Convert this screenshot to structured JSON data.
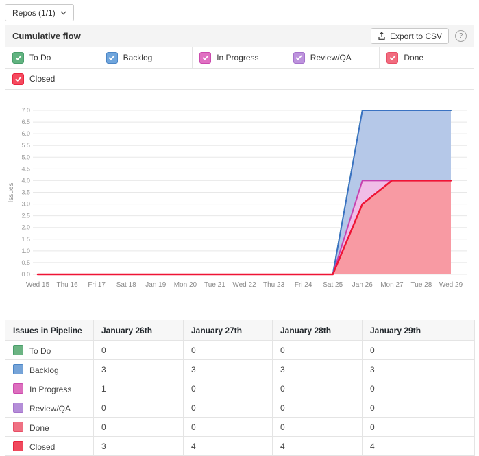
{
  "repos_button": {
    "label": "Repos (1/1)"
  },
  "panel": {
    "title": "Cumulative flow",
    "export_button": "Export to CSV",
    "help_icon": "?"
  },
  "legend": {
    "items": [
      {
        "label": "To Do",
        "color": "#61b380",
        "border": "#4a9e6c",
        "checked": true
      },
      {
        "label": "Backlog",
        "color": "#6fa5dc",
        "border": "#4c86c6",
        "checked": true
      },
      {
        "label": "In Progress",
        "color": "#e070c2",
        "border": "#cb4aad",
        "checked": true
      },
      {
        "label": "Review/QA",
        "color": "#bd93dd",
        "border": "#a673cc",
        "checked": true
      },
      {
        "label": "Done",
        "color": "#f16c7f",
        "border": "#e84f66",
        "checked": true
      },
      {
        "label": "Closed",
        "color": "#f54a5e",
        "border": "#e92540",
        "checked": true
      }
    ]
  },
  "chart_data": {
    "type": "area",
    "stacked": true,
    "title": "Cumulative flow",
    "xlabel": "",
    "ylabel": "Issues",
    "ylim": [
      0,
      7
    ],
    "grid": "horizontal",
    "legend_position": "top",
    "y_ticks": [
      "0.0",
      "0.5",
      "1.0",
      "1.5",
      "2.0",
      "2.5",
      "3.0",
      "3.5",
      "4.0",
      "4.5",
      "5.0",
      "5.5",
      "6.0",
      "6.5",
      "7.0"
    ],
    "x_ticks": [
      "Wed 15",
      "Thu 16",
      "Fri 17",
      "Sat 18",
      "Jan 19",
      "Mon 20",
      "Tue 21",
      "Wed 22",
      "Thu 23",
      "Fri 24",
      "Sat 25",
      "Jan 26",
      "Mon 27",
      "Tue 28",
      "Wed 29"
    ],
    "series": [
      {
        "name": "Closed",
        "values": [
          0,
          0,
          0,
          0,
          0,
          0,
          0,
          0,
          0,
          0,
          0,
          3,
          4,
          4,
          4
        ],
        "line": "#ef1435",
        "fill": "#f89aa3",
        "width": 2.5
      },
      {
        "name": "Done",
        "values": [
          0,
          0,
          0,
          0,
          0,
          0,
          0,
          0,
          0,
          0,
          0,
          0,
          0,
          0,
          0
        ],
        "line": "#e8506a",
        "fill": "#f7a6b0",
        "width": 2
      },
      {
        "name": "Review/QA",
        "values": [
          0,
          0,
          0,
          0,
          0,
          0,
          0,
          0,
          0,
          0,
          0,
          0,
          0,
          0,
          0
        ],
        "line": "#a673cc",
        "fill": "#dcc6ee",
        "width": 2
      },
      {
        "name": "In Progress",
        "values": [
          0,
          0,
          0,
          0,
          0,
          0,
          0,
          0,
          0,
          0,
          0,
          1,
          0,
          0,
          0
        ],
        "line": "#c63fae",
        "fill": "#f0bde7",
        "width": 2
      },
      {
        "name": "Backlog",
        "values": [
          0,
          0,
          0,
          0,
          0,
          0,
          0,
          0,
          0,
          0,
          0,
          3,
          3,
          3,
          3
        ],
        "line": "#3a72c2",
        "fill": "#b5c8e8",
        "width": 2
      },
      {
        "name": "To Do",
        "values": [
          0,
          0,
          0,
          0,
          0,
          0,
          0,
          0,
          0,
          0,
          0,
          0,
          0,
          0,
          0
        ],
        "line": "#44a266",
        "fill": "#b6dcc4",
        "width": 2
      }
    ]
  },
  "table": {
    "headers": [
      "Issues in Pipeline",
      "January 26th",
      "January 27th",
      "January 28th",
      "January 29th"
    ],
    "rows": [
      {
        "label": "To Do",
        "color": "#6cb483",
        "border": "#4a9e6c",
        "values": [
          "0",
          "0",
          "0",
          "0"
        ]
      },
      {
        "label": "Backlog",
        "color": "#76a4d8",
        "border": "#4c86c6",
        "values": [
          "3",
          "3",
          "3",
          "3"
        ]
      },
      {
        "label": "In Progress",
        "color": "#dd6fbe",
        "border": "#cb4aad",
        "values": [
          "1",
          "0",
          "0",
          "0"
        ]
      },
      {
        "label": "Review/QA",
        "color": "#b48ed8",
        "border": "#a673cc",
        "values": [
          "0",
          "0",
          "0",
          "0"
        ]
      },
      {
        "label": "Done",
        "color": "#ef7183",
        "border": "#e84f66",
        "values": [
          "0",
          "0",
          "0",
          "0"
        ]
      },
      {
        "label": "Closed",
        "color": "#f0495d",
        "border": "#e92540",
        "values": [
          "3",
          "4",
          "4",
          "4"
        ]
      }
    ]
  }
}
